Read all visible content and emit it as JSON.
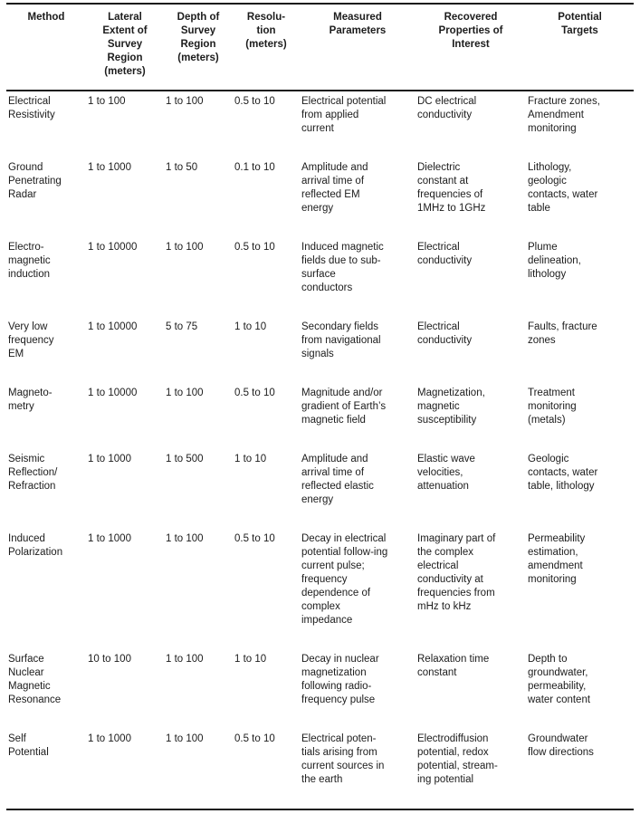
{
  "colors": {
    "text": "#1c1c1c",
    "border": "#1a1a1a",
    "background": "#ffffff"
  },
  "table": {
    "headers": [
      "Method",
      "Lateral Extent of Survey Region (meters)",
      "Depth of Survey Region (meters)",
      "Resolu-tion (meters)",
      "Measured Parameters",
      "Recovered Properties of Interest",
      "Potential Targets"
    ],
    "rows": [
      {
        "cells": [
          "Electrical Resistivity",
          "1 to 100",
          "1 to 100",
          "0.5 to 10",
          "Electrical potential from applied current",
          "DC electrical conductivity",
          "Fracture zones, Amendment monitoring"
        ]
      },
      {
        "cells": [
          "Ground Penetrating Radar",
          "1 to 1000",
          "1 to 50",
          "0.1 to 10",
          "Amplitude and arrival time of reflected EM energy",
          "Dielectric constant at frequencies of 1MHz to 1GHz",
          "Lithology, geologic contacts, water table"
        ]
      },
      {
        "cells": [
          "Electro-magnetic induction",
          "1 to 10000",
          "1 to 100",
          "0.5 to 10",
          "Induced magnetic fields due to sub-surface conductors",
          "Electrical conductivity",
          "Plume delineation, lithology"
        ]
      },
      {
        "cells": [
          "Very low frequency EM",
          "1 to 10000",
          "5 to 75",
          "1 to 10",
          "Secondary fields from navigational signals",
          "Electrical conductivity",
          "Faults, fracture zones"
        ]
      },
      {
        "cells": [
          "Magneto-metry",
          "1 to 10000",
          "1 to 100",
          "0.5 to 10",
          "Magnitude and/or gradient of Earth’s magnetic field",
          "Magnetization, magnetic susceptibility",
          "Treatment monitoring (metals)"
        ]
      },
      {
        "cells": [
          "Seismic Reflection/ Refraction",
          "1 to 1000",
          "1 to 500",
          "1 to 10",
          "Amplitude and arrival time of reflected elastic energy",
          "Elastic wave velocities, attenuation",
          "Geologic contacts, water table, lithology"
        ]
      },
      {
        "cells": [
          "Induced Polarization",
          "1 to 1000",
          "1 to 100",
          "0.5 to 10",
          "Decay in electrical potential follow-ing current pulse; frequency dependence of complex impedance",
          "Imaginary part of the complex electrical conductivity at frequencies from mHz to kHz",
          "Permeability estimation, amendment monitoring"
        ]
      },
      {
        "cells": [
          "Surface Nuclear Magnetic Resonance",
          "10 to 100",
          "1 to 100",
          "1 to 10",
          "Decay in nuclear magnetization following radio-frequency pulse",
          "Relaxation time constant",
          "Depth to groundwater, permeability, water content"
        ]
      },
      {
        "cells": [
          "Self Potential",
          "1 to 1000",
          "1 to 100",
          "0.5 to 10",
          "Electrical poten-tials arising from current sources in the earth",
          "Electrodiffusion potential, redox potential, stream-ing potential",
          "Groundwater flow directions"
        ]
      }
    ]
  }
}
